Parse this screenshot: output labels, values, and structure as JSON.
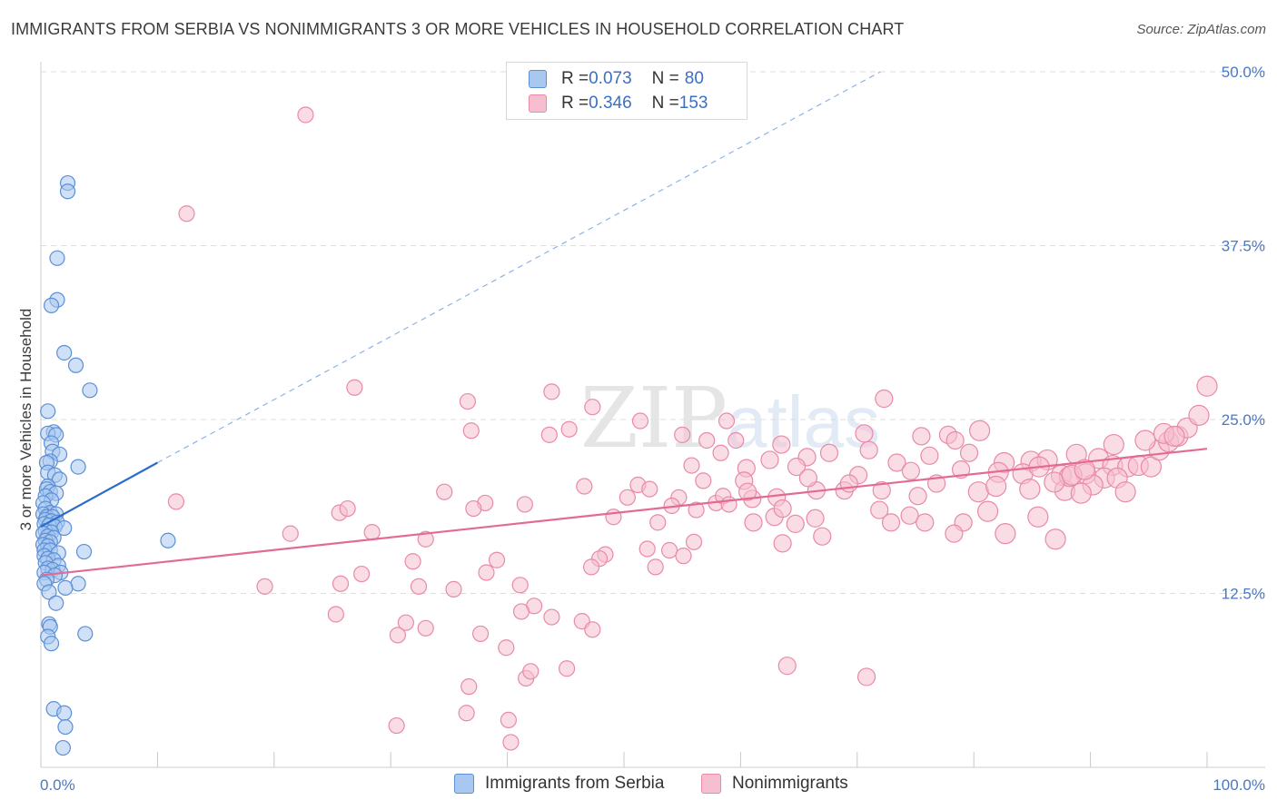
{
  "header": {
    "title": "IMMIGRANTS FROM SERBIA VS NONIMMIGRANTS 3 OR MORE VEHICLES IN HOUSEHOLD CORRELATION CHART",
    "source": "Source: ZipAtlas.com"
  },
  "legend": {
    "rows": [
      {
        "r_label": "R = ",
        "r_value": "0.073",
        "n_label": "N = ",
        "n_value": "80"
      },
      {
        "r_label": "R = ",
        "r_value": "0.346",
        "n_label": "N = ",
        "n_value": "153"
      }
    ]
  },
  "bottom_legend": {
    "items": [
      "Immigrants from Serbia",
      "Nonimmigrants"
    ]
  },
  "chart_data": {
    "type": "scatter",
    "ylabel": "3 or more Vehicles in Household",
    "xlabel": "",
    "xlim": [
      0,
      100
    ],
    "ylim": [
      0,
      50
    ],
    "x_tick_labels": [
      "0.0%",
      "100.0%"
    ],
    "y_ticks": [
      12.5,
      25.0,
      37.5,
      50.0
    ],
    "y_tick_labels": [
      "12.5%",
      "25.0%",
      "37.5%",
      "50.0%"
    ],
    "grid": true,
    "colors": {
      "blue_fill": "#a9c8f0",
      "blue_stroke": "#5b8fd6",
      "blue_line": "#2a6ccc",
      "pink_fill": "#f6bfd0",
      "pink_stroke": "#e88aa8",
      "pink_line": "#e26b95",
      "tick_label": "#4a78c2",
      "grid": "#dcdcdc"
    },
    "series": [
      {
        "name": "Immigrants from Serbia",
        "color": "#a9c8f0",
        "trend": {
          "x": [
            0.0,
            10.0
          ],
          "y": [
            17.3,
            21.9
          ],
          "dashed_to": [
            72.0,
            50.0
          ]
        },
        "points": [
          [
            2.3,
            42.0
          ],
          [
            2.3,
            41.4
          ],
          [
            1.4,
            36.6
          ],
          [
            1.4,
            33.6
          ],
          [
            0.9,
            33.2
          ],
          [
            2.0,
            29.8
          ],
          [
            3.0,
            28.9
          ],
          [
            4.2,
            27.1
          ],
          [
            0.6,
            25.6
          ],
          [
            1.1,
            24.1
          ],
          [
            0.6,
            24.0
          ],
          [
            1.3,
            23.9
          ],
          [
            0.9,
            23.3
          ],
          [
            1.0,
            22.7
          ],
          [
            1.6,
            22.5
          ],
          [
            0.8,
            22.0
          ],
          [
            0.5,
            21.9
          ],
          [
            3.2,
            21.6
          ],
          [
            0.6,
            21.2
          ],
          [
            1.2,
            21.0
          ],
          [
            1.6,
            20.7
          ],
          [
            0.6,
            20.2
          ],
          [
            0.5,
            20.0
          ],
          [
            0.8,
            19.8
          ],
          [
            1.3,
            19.7
          ],
          [
            0.4,
            19.5
          ],
          [
            0.9,
            19.2
          ],
          [
            0.2,
            19.0
          ],
          [
            0.4,
            18.6
          ],
          [
            0.8,
            18.3
          ],
          [
            1.3,
            18.2
          ],
          [
            0.2,
            18.2
          ],
          [
            0.5,
            18.0
          ],
          [
            1.0,
            18.0
          ],
          [
            0.4,
            17.8
          ],
          [
            0.9,
            17.7
          ],
          [
            1.4,
            17.6
          ],
          [
            0.3,
            17.5
          ],
          [
            0.7,
            17.4
          ],
          [
            1.2,
            17.3
          ],
          [
            2.0,
            17.2
          ],
          [
            0.4,
            17.0
          ],
          [
            0.9,
            16.9
          ],
          [
            0.2,
            16.8
          ],
          [
            0.6,
            16.6
          ],
          [
            1.1,
            16.5
          ],
          [
            0.4,
            16.3
          ],
          [
            0.8,
            16.2
          ],
          [
            0.2,
            16.0
          ],
          [
            0.6,
            15.9
          ],
          [
            0.3,
            15.6
          ],
          [
            0.8,
            15.6
          ],
          [
            1.5,
            15.4
          ],
          [
            3.7,
            15.5
          ],
          [
            0.3,
            15.2
          ],
          [
            0.6,
            15.0
          ],
          [
            1.1,
            14.9
          ],
          [
            0.4,
            14.7
          ],
          [
            1.5,
            14.5
          ],
          [
            0.6,
            14.3
          ],
          [
            1.0,
            14.2
          ],
          [
            0.3,
            14.0
          ],
          [
            1.7,
            14.0
          ],
          [
            1.2,
            13.8
          ],
          [
            0.5,
            13.5
          ],
          [
            0.3,
            13.2
          ],
          [
            3.2,
            13.2
          ],
          [
            2.1,
            12.9
          ],
          [
            0.7,
            12.6
          ],
          [
            1.3,
            11.8
          ],
          [
            0.7,
            10.3
          ],
          [
            0.8,
            10.1
          ],
          [
            3.8,
            9.6
          ],
          [
            0.6,
            9.4
          ],
          [
            0.9,
            8.9
          ],
          [
            10.9,
            16.3
          ],
          [
            1.1,
            4.2
          ],
          [
            2.0,
            3.9
          ],
          [
            2.1,
            2.9
          ],
          [
            1.9,
            1.4
          ]
        ]
      },
      {
        "name": "Nonimmigrants",
        "color": "#f6bfd0",
        "trend": {
          "x": [
            0.0,
            100.0
          ],
          "y": [
            13.8,
            22.9
          ]
        },
        "points": [
          [
            22.7,
            46.9
          ],
          [
            12.5,
            39.8
          ],
          [
            26.9,
            27.3
          ],
          [
            36.6,
            26.3
          ],
          [
            43.8,
            27.0
          ],
          [
            47.3,
            25.9
          ],
          [
            45.3,
            24.3
          ],
          [
            36.9,
            24.2
          ],
          [
            43.6,
            23.9
          ],
          [
            51.4,
            24.9
          ],
          [
            55.0,
            23.9
          ],
          [
            57.1,
            23.5
          ],
          [
            58.8,
            24.9
          ],
          [
            59.6,
            23.5
          ],
          [
            63.5,
            23.2
          ],
          [
            72.3,
            26.5
          ],
          [
            70.6,
            24.0
          ],
          [
            75.5,
            23.8
          ],
          [
            77.8,
            23.9
          ],
          [
            78.4,
            23.5
          ],
          [
            80.5,
            24.2
          ],
          [
            58.3,
            22.6
          ],
          [
            62.5,
            22.1
          ],
          [
            65.7,
            22.3
          ],
          [
            67.6,
            22.6
          ],
          [
            71.0,
            22.8
          ],
          [
            73.4,
            21.9
          ],
          [
            76.2,
            22.4
          ],
          [
            79.6,
            22.6
          ],
          [
            82.6,
            21.9
          ],
          [
            84.9,
            22.0
          ],
          [
            86.3,
            22.1
          ],
          [
            88.8,
            22.5
          ],
          [
            90.7,
            22.2
          ],
          [
            91.9,
            21.7
          ],
          [
            93.2,
            21.6
          ],
          [
            94.1,
            21.7
          ],
          [
            95.2,
            21.6
          ],
          [
            95.9,
            22.8
          ],
          [
            96.7,
            23.4
          ],
          [
            97.5,
            23.8
          ],
          [
            98.3,
            24.4
          ],
          [
            99.3,
            25.3
          ],
          [
            100.0,
            27.4
          ],
          [
            55.8,
            21.7
          ],
          [
            60.5,
            21.5
          ],
          [
            64.8,
            21.6
          ],
          [
            70.1,
            21.0
          ],
          [
            74.6,
            21.3
          ],
          [
            78.9,
            21.4
          ],
          [
            82.1,
            21.2
          ],
          [
            84.2,
            21.1
          ],
          [
            87.5,
            21.0
          ],
          [
            89.6,
            21.1
          ],
          [
            91.2,
            20.8
          ],
          [
            92.3,
            20.8
          ],
          [
            34.6,
            19.8
          ],
          [
            38.1,
            19.0
          ],
          [
            41.5,
            18.9
          ],
          [
            46.6,
            20.2
          ],
          [
            51.2,
            20.3
          ],
          [
            52.2,
            20.0
          ],
          [
            50.3,
            19.4
          ],
          [
            54.7,
            19.4
          ],
          [
            57.9,
            19.0
          ],
          [
            61.0,
            19.3
          ],
          [
            63.1,
            19.4
          ],
          [
            66.5,
            19.9
          ],
          [
            68.9,
            19.9
          ],
          [
            72.1,
            19.9
          ],
          [
            75.2,
            19.5
          ],
          [
            80.4,
            19.8
          ],
          [
            84.8,
            20.0
          ],
          [
            87.8,
            19.9
          ],
          [
            90.2,
            20.3
          ],
          [
            93.0,
            19.8
          ],
          [
            11.6,
            19.1
          ],
          [
            21.4,
            16.8
          ],
          [
            25.6,
            18.3
          ],
          [
            26.3,
            18.6
          ],
          [
            28.4,
            16.9
          ],
          [
            33.0,
            16.4
          ],
          [
            37.1,
            18.6
          ],
          [
            49.1,
            18.0
          ],
          [
            52.9,
            17.6
          ],
          [
            56.2,
            18.5
          ],
          [
            61.1,
            17.6
          ],
          [
            66.4,
            17.9
          ],
          [
            74.5,
            18.1
          ],
          [
            81.2,
            18.4
          ],
          [
            85.5,
            18.0
          ],
          [
            89.2,
            19.7
          ],
          [
            72.9,
            17.6
          ],
          [
            79.1,
            17.6
          ],
          [
            87.0,
            16.4
          ],
          [
            52.0,
            15.7
          ],
          [
            48.4,
            15.3
          ],
          [
            47.9,
            15.0
          ],
          [
            53.9,
            15.6
          ],
          [
            56.0,
            16.2
          ],
          [
            63.6,
            16.1
          ],
          [
            67.0,
            16.6
          ],
          [
            78.3,
            16.8
          ],
          [
            75.8,
            17.6
          ],
          [
            71.9,
            18.5
          ],
          [
            31.9,
            14.8
          ],
          [
            27.5,
            13.9
          ],
          [
            39.1,
            14.9
          ],
          [
            38.2,
            14.0
          ],
          [
            47.2,
            14.4
          ],
          [
            52.7,
            14.4
          ],
          [
            55.1,
            15.2
          ],
          [
            19.2,
            13.0
          ],
          [
            25.7,
            13.2
          ],
          [
            32.4,
            13.0
          ],
          [
            35.4,
            12.8
          ],
          [
            41.1,
            13.1
          ],
          [
            42.3,
            11.6
          ],
          [
            43.8,
            10.8
          ],
          [
            31.3,
            10.4
          ],
          [
            33.0,
            10.0
          ],
          [
            30.6,
            9.5
          ],
          [
            37.7,
            9.6
          ],
          [
            25.3,
            11.0
          ],
          [
            41.2,
            11.2
          ],
          [
            46.4,
            10.5
          ],
          [
            47.3,
            9.9
          ],
          [
            39.9,
            8.6
          ],
          [
            45.1,
            7.1
          ],
          [
            41.6,
            6.4
          ],
          [
            42.0,
            6.9
          ],
          [
            36.7,
            5.8
          ],
          [
            40.1,
            3.4
          ],
          [
            36.5,
            3.9
          ],
          [
            30.5,
            3.0
          ],
          [
            40.3,
            1.8
          ],
          [
            64.0,
            7.3
          ],
          [
            70.8,
            6.5
          ],
          [
            82.7,
            16.8
          ],
          [
            76.8,
            20.4
          ],
          [
            81.9,
            20.2
          ],
          [
            88.2,
            20.9
          ],
          [
            86.9,
            20.5
          ],
          [
            85.6,
            21.6
          ],
          [
            92.0,
            23.2
          ],
          [
            94.7,
            23.5
          ],
          [
            96.3,
            24.0
          ],
          [
            97.2,
            23.8
          ],
          [
            88.4,
            21.0
          ],
          [
            89.5,
            21.4
          ],
          [
            65.8,
            20.8
          ],
          [
            69.3,
            20.4
          ],
          [
            60.3,
            20.6
          ],
          [
            56.8,
            20.6
          ],
          [
            60.6,
            19.8
          ],
          [
            62.9,
            18.0
          ],
          [
            64.7,
            17.5
          ],
          [
            58.5,
            19.5
          ],
          [
            59.0,
            18.9
          ],
          [
            63.6,
            18.6
          ],
          [
            54.1,
            18.8
          ]
        ]
      }
    ]
  }
}
